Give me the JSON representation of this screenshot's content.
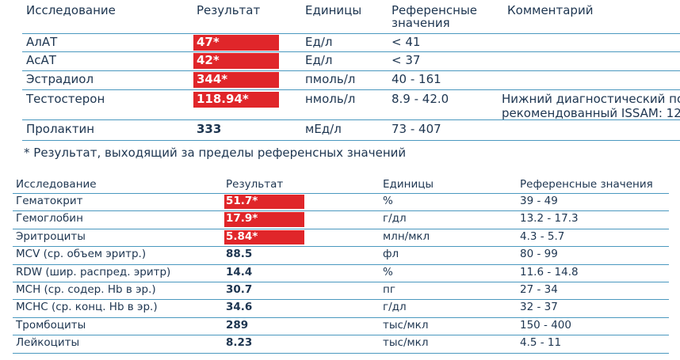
{
  "top_table": {
    "headers": [
      "Исследование",
      "Результат",
      "Единицы",
      "Референсные значения",
      "Комментарий"
    ],
    "rows": [
      {
        "cells": [
          "АлАТ",
          "47*",
          "Ед/л",
          "< 41"
        ],
        "flagged": true
      },
      {
        "cells": [
          "АсАТ",
          "42*",
          "Ед/л",
          "< 37"
        ],
        "flagged": true
      },
      {
        "cells": [
          "Эстрадиол",
          "344*",
          "пмоль/л",
          "40 - 161"
        ],
        "flagged": true
      },
      {
        "cells": [
          "Тестостерон",
          "118.94*",
          "нмоль/л",
          "8.9 - 42.0"
        ],
        "flagged": true,
        "comment": [
          "Нижний диагностический пор",
          "рекомендованный ISSAM: 12"
        ]
      },
      {
        "cells": [
          "Пролактин",
          "333",
          "мЕд/л",
          "73 - 407"
        ],
        "flagged": false
      }
    ],
    "footnote": "* Результат, выходящий за пределы референсных значений"
  },
  "bottom_table": {
    "headers": [
      "Исследование",
      "Результат",
      "Единицы",
      "Референсные значения"
    ],
    "rows": [
      {
        "cells": [
          "Гематокрит",
          "51.7*",
          "%",
          "39 - 49"
        ],
        "flagged": true
      },
      {
        "cells": [
          "Гемоглобин",
          "17.9*",
          "г/дл",
          "13.2 - 17.3"
        ],
        "flagged": true
      },
      {
        "cells": [
          "Эритроциты",
          "5.84*",
          "млн/мкл",
          "4.3 - 5.7"
        ],
        "flagged": true
      },
      {
        "cells": [
          "MCV (ср. объем эритр.)",
          "88.5",
          "фл",
          "80 - 99"
        ],
        "flagged": false
      },
      {
        "cells": [
          "RDW (шир. распред. эритр)",
          "14.4",
          "%",
          "11.6 - 14.8"
        ],
        "flagged": false
      },
      {
        "cells": [
          "MCH (ср. содер. Hb в эр.)",
          "30.7",
          "пг",
          "27 - 34"
        ],
        "flagged": false
      },
      {
        "cells": [
          "MCHC (ср. конц. Hb в эр.)",
          "34.6",
          "г/дл",
          "32 - 37"
        ],
        "flagged": false
      },
      {
        "cells": [
          "Тромбоциты",
          "289",
          "тыс/мкл",
          "150 - 400"
        ],
        "flagged": false
      },
      {
        "cells": [
          "Лейкоциты",
          "8.23",
          "тыс/мкл",
          "4.5 - 11"
        ],
        "flagged": false
      }
    ]
  }
}
